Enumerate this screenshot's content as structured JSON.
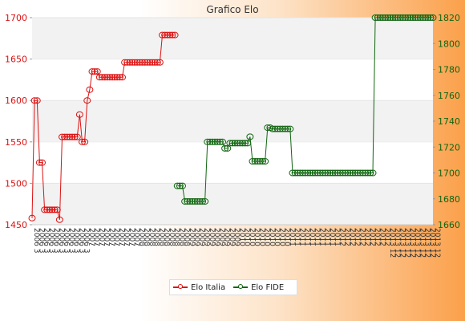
{
  "chart_data": {
    "type": "line",
    "title": "Grafico Elo",
    "xlabel": "",
    "ylabel_left": "",
    "ylabel_right": "",
    "ylim_left": [
      1450,
      1700
    ],
    "yticks_left": [
      1450,
      1500,
      1550,
      1600,
      1650,
      1700
    ],
    "ylim_right": [
      1660,
      1820
    ],
    "yticks_right": [
      1660,
      1680,
      1700,
      1720,
      1740,
      1760,
      1780,
      1800,
      1820
    ],
    "grid": "horizontal bands",
    "legend_position": "bottom",
    "x_tick_labels_note": "dense overlapping date labels (2006…2013)",
    "x_tick_labels": [
      "2006 3",
      "2007",
      "2008",
      "2009",
      "2010",
      "2011",
      "2012",
      "2013 12"
    ],
    "colors": {
      "italia": "#dd1111",
      "fide": "#116611"
    },
    "series": [
      {
        "name": "Elo Italia",
        "axis": "left",
        "values": [
          1458,
          1600,
          1600,
          1525,
          1525,
          1468,
          1468,
          1468,
          1468,
          1468,
          1468,
          1456,
          1556,
          1556,
          1556,
          1556,
          1556,
          1556,
          1556,
          1583,
          1550,
          1550,
          1600,
          1613,
          1635,
          1635,
          1635,
          1628,
          1628,
          1628,
          1628,
          1628,
          1628,
          1628,
          1628,
          1628,
          1628,
          1646,
          1646,
          1646,
          1646,
          1646,
          1646,
          1646,
          1646,
          1646,
          1646,
          1646,
          1646,
          1646,
          1646,
          1646,
          1679,
          1679,
          1679,
          1679,
          1679,
          1679
        ]
      },
      {
        "name": "Elo FIDE",
        "axis": "right",
        "values": [
          null,
          null,
          null,
          null,
          null,
          null,
          null,
          null,
          null,
          null,
          null,
          null,
          null,
          null,
          null,
          null,
          null,
          null,
          null,
          null,
          null,
          null,
          null,
          null,
          null,
          null,
          null,
          null,
          null,
          null,
          null,
          null,
          null,
          null,
          null,
          null,
          null,
          null,
          null,
          null,
          null,
          null,
          null,
          null,
          null,
          null,
          null,
          null,
          null,
          null,
          null,
          null,
          null,
          null,
          null,
          null,
          null,
          null,
          1690,
          1690,
          1690,
          1678,
          1678,
          1678,
          1678,
          1678,
          1678,
          1678,
          1678,
          1678,
          1724,
          1724,
          1724,
          1724,
          1724,
          1724,
          1724,
          1719,
          1719,
          1723,
          1723,
          1723,
          1723,
          1723,
          1723,
          1723,
          1723,
          1728,
          1709,
          1709,
          1709,
          1709,
          1709,
          1709,
          1735,
          1735,
          1734,
          1734,
          1734,
          1734,
          1734,
          1734,
          1734,
          1734,
          1700,
          1700,
          1700,
          1700,
          1700,
          1700,
          1700,
          1700,
          1700,
          1700,
          1700,
          1700,
          1700,
          1700,
          1700,
          1700,
          1700,
          1700,
          1700,
          1700,
          1700,
          1700,
          1700,
          1700,
          1700,
          1700,
          1700,
          1700,
          1700,
          1700,
          1700,
          1700,
          1700,
          1820,
          1820,
          1820,
          1820,
          1820,
          1820,
          1820,
          1820,
          1820,
          1820,
          1820,
          1820,
          1820,
          1820,
          1820,
          1820,
          1820,
          1820,
          1820,
          1820,
          1820,
          1820,
          1820,
          1820
        ]
      }
    ]
  }
}
